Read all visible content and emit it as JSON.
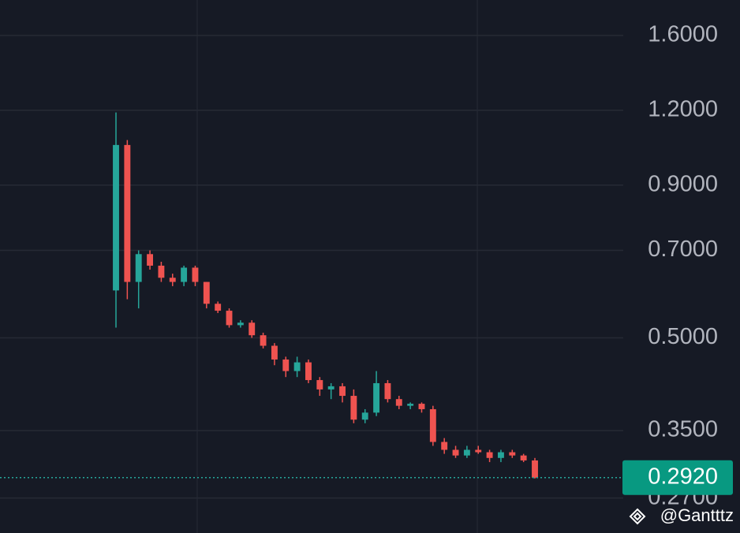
{
  "chart_data": {
    "type": "candlestick",
    "log_scale": true,
    "grid": true,
    "colors": {
      "up": "#26a69a",
      "down": "#ef5350"
    },
    "ylim": [
      0.236,
      1.834
    ],
    "yticks": [
      {
        "value": 1.6,
        "label": "1.6000"
      },
      {
        "value": 1.2,
        "label": "1.2000"
      },
      {
        "value": 0.9,
        "label": "0.9000"
      },
      {
        "value": 0.7,
        "label": "0.7000"
      },
      {
        "value": 0.5,
        "label": "0.5000"
      },
      {
        "value": 0.35,
        "label": "0.3500"
      },
      {
        "value": 0.27,
        "label": "0.2700"
      }
    ],
    "open": [
      0.6,
      1.05,
      0.62,
      0.69,
      0.66,
      0.63,
      0.62,
      0.655,
      0.62,
      0.57,
      0.555,
      0.525,
      0.53,
      0.505,
      0.485,
      0.46,
      0.44,
      0.455,
      0.425,
      0.41,
      0.415,
      0.4,
      0.365,
      0.375,
      0.42,
      0.395,
      0.385,
      0.388,
      0.38,
      0.335,
      0.325,
      0.318,
      0.325,
      0.322,
      0.315,
      0.322,
      0.318,
      0.312
    ],
    "high": [
      1.19,
      1.07,
      0.7,
      0.7,
      0.67,
      0.64,
      0.66,
      0.66,
      0.62,
      0.575,
      0.56,
      0.535,
      0.535,
      0.51,
      0.49,
      0.465,
      0.465,
      0.46,
      0.43,
      0.42,
      0.42,
      0.41,
      0.38,
      0.44,
      0.425,
      0.4,
      0.39,
      0.39,
      0.385,
      0.34,
      0.33,
      0.33,
      0.33,
      0.325,
      0.325,
      0.325,
      0.32,
      0.315
    ],
    "low": [
      0.52,
      0.58,
      0.56,
      0.65,
      0.62,
      0.61,
      0.61,
      0.61,
      0.56,
      0.55,
      0.52,
      0.52,
      0.5,
      0.48,
      0.45,
      0.43,
      0.43,
      0.42,
      0.4,
      0.395,
      0.39,
      0.36,
      0.36,
      0.37,
      0.39,
      0.38,
      0.38,
      0.375,
      0.33,
      0.32,
      0.315,
      0.315,
      0.32,
      0.31,
      0.31,
      0.315,
      0.31,
      0.291
    ],
    "close": [
      1.05,
      0.62,
      0.69,
      0.66,
      0.63,
      0.62,
      0.655,
      0.62,
      0.57,
      0.555,
      0.525,
      0.53,
      0.505,
      0.485,
      0.46,
      0.44,
      0.455,
      0.425,
      0.41,
      0.415,
      0.4,
      0.365,
      0.375,
      0.42,
      0.395,
      0.385,
      0.388,
      0.38,
      0.335,
      0.325,
      0.318,
      0.325,
      0.322,
      0.315,
      0.322,
      0.318,
      0.312,
      0.292
    ],
    "last_price": {
      "value": 0.292,
      "label": "0.2920"
    },
    "watermark": "@Gantttz"
  }
}
